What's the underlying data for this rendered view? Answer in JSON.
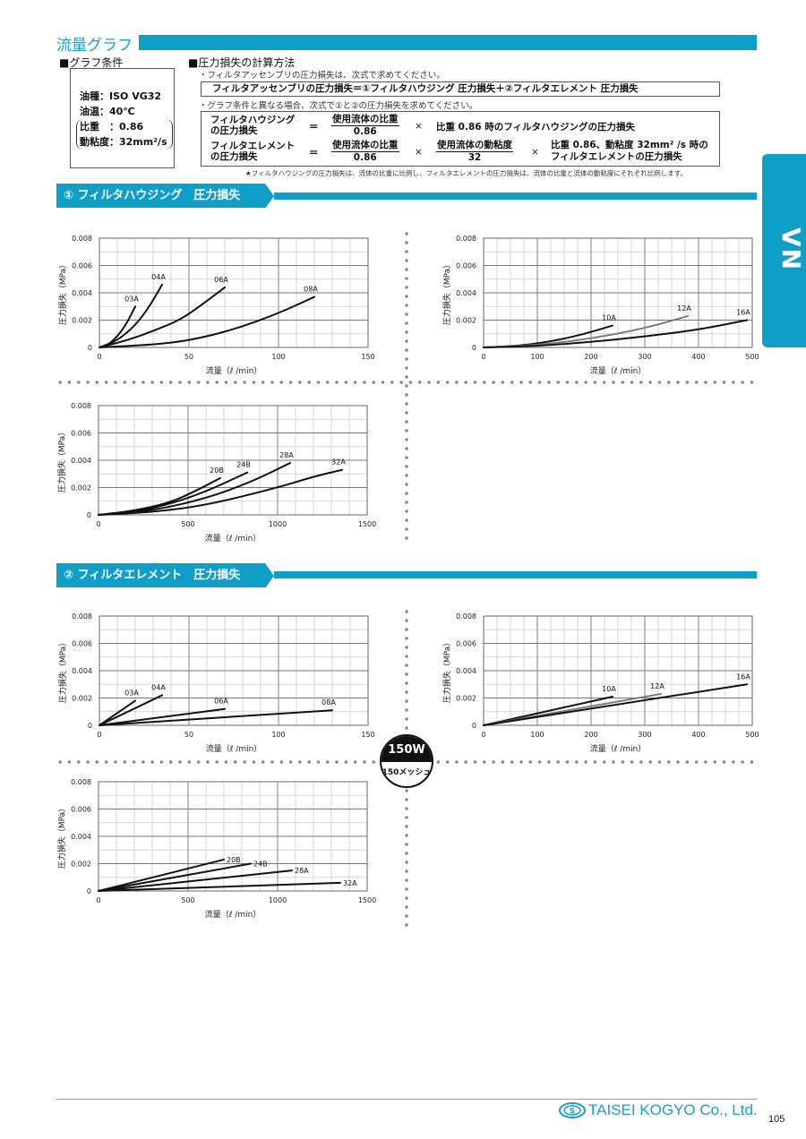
{
  "header": {
    "title": "流量グラフ"
  },
  "conditions": {
    "heading": "■グラフ条件",
    "oil": "油種：ISO VG32",
    "temp": "油温：40℃",
    "gravity": "比重　：0.86",
    "viscosity": "動粘度：32mm²/s"
  },
  "method": {
    "heading": "■圧力損失の計算方法",
    "note1": "・フィルタアッセンブリの圧力損失は、次式で求めてください。",
    "formula_main": "フィルタアッセンブリの圧力損失＝①フィルタハウジング 圧力損失＋②フィルタエレメント 圧力損失",
    "note2": "・グラフ条件と異なる場合、次式で①と②の圧力損失を求めてください。",
    "row1": {
      "lhs1": "フィルタハウジング",
      "lhs2": "の圧力損失",
      "eq": "＝",
      "num": "使用流体の比重",
      "den": "0.86",
      "times": "×",
      "rhs": "比重 0.86 時のフィルタハウジングの圧力損失"
    },
    "row2": {
      "lhs1": "フィルタエレメント",
      "lhs2": "の圧力損失",
      "eq": "＝",
      "num": "使用流体の比重",
      "den": "0.86",
      "times": "×",
      "num2": "使用流体の動粘度",
      "den2": "32",
      "times2": "×",
      "rhs1": "比重 0.86、動粘度 32mm² /s 時の",
      "rhs2": "フィルタエレメントの圧力損失"
    },
    "footnote": "★フィルタハウジングの圧力損失は、流体の比重に比例し、フィルタエレメントの圧力損失は、流体の比重と流体の動粘度にそれぞれ比例します。"
  },
  "sections": [
    {
      "title": "① フィルタハウジング　圧力損失"
    },
    {
      "title": "② フィルタエレメント　圧力損失"
    }
  ],
  "side_tab": "VN",
  "badge": {
    "top": "150W",
    "bottom": "150メッシュ"
  },
  "footer": {
    "company": "TAISEI KOGYO Co., Ltd.",
    "page": "105"
  },
  "colors": {
    "accent": "#0f9ec7",
    "series_gray": "#7a7a7a"
  },
  "chart_data": [
    {
      "type": "line",
      "xlabel": "流量（ℓ /min）",
      "ylabel": "圧力損失（MPa）",
      "xlim": [
        0,
        150
      ],
      "ylim": [
        0,
        0.008
      ],
      "xticks": [
        0,
        50,
        100,
        150
      ],
      "yticks": [
        "0",
        "0.002",
        "0.004",
        "0.006",
        "0.008"
      ],
      "xminor": 10,
      "grid": true,
      "series": [
        {
          "name": "03A",
          "color": "#111",
          "points": [
            [
              0,
              0
            ],
            [
              5,
              0.0002
            ],
            [
              10,
              0.0008
            ],
            [
              15,
              0.0017
            ],
            [
              20,
              0.003
            ]
          ]
        },
        {
          "name": "04A",
          "color": "#111",
          "points": [
            [
              0,
              0
            ],
            [
              10,
              0.0005
            ],
            [
              20,
              0.0016
            ],
            [
              28,
              0.003
            ],
            [
              35,
              0.0046
            ]
          ]
        },
        {
          "name": "06A",
          "color": "#111",
          "points": [
            [
              0,
              0
            ],
            [
              15,
              0.0005
            ],
            [
              30,
              0.0012
            ],
            [
              45,
              0.002
            ],
            [
              58,
              0.0032
            ],
            [
              70,
              0.0044
            ]
          ]
        },
        {
          "name": "08A",
          "color": "#111",
          "points": [
            [
              0,
              0
            ],
            [
              30,
              0.0002
            ],
            [
              50,
              0.0005
            ],
            [
              75,
              0.0013
            ],
            [
              100,
              0.0025
            ],
            [
              120,
              0.0037
            ]
          ]
        }
      ]
    },
    {
      "type": "line",
      "xlabel": "流量（ℓ /min）",
      "ylabel": "圧力損失（MPa）",
      "xlim": [
        0,
        500
      ],
      "ylim": [
        0,
        0.008
      ],
      "xticks": [
        0,
        100,
        200,
        300,
        400,
        500
      ],
      "yticks": [
        "0",
        "0.002",
        "0.004",
        "0.006",
        "0.008"
      ],
      "xminor": 25,
      "grid": true,
      "series": [
        {
          "name": "10A",
          "color": "#111",
          "points": [
            [
              0,
              0
            ],
            [
              60,
              0.0001
            ],
            [
              120,
              0.0004
            ],
            [
              180,
              0.0009
            ],
            [
              240,
              0.0016
            ]
          ]
        },
        {
          "name": "12A",
          "color": "#7a7a7a",
          "points": [
            [
              0,
              0
            ],
            [
              100,
              0.00016
            ],
            [
              200,
              0.00064
            ],
            [
              300,
              0.0014
            ],
            [
              380,
              0.0023
            ]
          ]
        },
        {
          "name": "16A",
          "color": "#111",
          "points": [
            [
              0,
              0
            ],
            [
              100,
              0.0001
            ],
            [
              200,
              0.0004
            ],
            [
              300,
              0.0008
            ],
            [
              400,
              0.0013
            ],
            [
              490,
              0.002
            ]
          ]
        }
      ]
    },
    {
      "type": "line",
      "xlabel": "流量（ℓ /min）",
      "ylabel": "圧力損失（MPa）",
      "xlim": [
        0,
        1500
      ],
      "ylim": [
        0,
        0.008
      ],
      "xticks": [
        0,
        500,
        1000,
        1500
      ],
      "yticks": [
        "0",
        "0.002",
        "0.004",
        "0.006",
        "0.008"
      ],
      "xminor": 100,
      "grid": true,
      "series": [
        {
          "name": "20B",
          "color": "#111",
          "points": [
            [
              0,
              0
            ],
            [
              200,
              0.0003
            ],
            [
              400,
              0.0009
            ],
            [
              550,
              0.0018
            ],
            [
              680,
              0.0027
            ]
          ]
        },
        {
          "name": "24B",
          "color": "#111",
          "points": [
            [
              0,
              0
            ],
            [
              200,
              0.0002
            ],
            [
              400,
              0.0008
            ],
            [
              600,
              0.0017
            ],
            [
              830,
              0.0031
            ]
          ]
        },
        {
          "name": "28A",
          "color": "#111",
          "points": [
            [
              0,
              0
            ],
            [
              300,
              0.0003
            ],
            [
              600,
              0.0012
            ],
            [
              850,
              0.0024
            ],
            [
              1070,
              0.0038
            ]
          ]
        },
        {
          "name": "32A",
          "color": "#111",
          "points": [
            [
              0,
              0
            ],
            [
              300,
              0.0002
            ],
            [
              600,
              0.0007
            ],
            [
              1000,
              0.002
            ],
            [
              1200,
              0.0028
            ],
            [
              1360,
              0.0033
            ]
          ]
        }
      ]
    },
    {
      "type": "line",
      "xlabel": "流量（ℓ /min）",
      "ylabel": "圧力損失（MPa）",
      "xlim": [
        0,
        150
      ],
      "ylim": [
        0,
        0.008
      ],
      "xticks": [
        0,
        50,
        100,
        150
      ],
      "yticks": [
        "0",
        "0.002",
        "0.004",
        "0.006",
        "0.008"
      ],
      "xminor": 10,
      "grid": true,
      "series": [
        {
          "name": "03A",
          "color": "#111",
          "points": [
            [
              0,
              0
            ],
            [
              20,
              0.0018
            ]
          ]
        },
        {
          "name": "04A",
          "color": "#111",
          "points": [
            [
              0,
              0
            ],
            [
              35,
              0.0022
            ]
          ]
        },
        {
          "name": "06A",
          "color": "#111",
          "points": [
            [
              0,
              0
            ],
            [
              70,
              0.0012
            ]
          ]
        },
        {
          "name": "08A",
          "color": "#111",
          "points": [
            [
              0,
              0
            ],
            [
              130,
              0.0011
            ]
          ]
        }
      ]
    },
    {
      "type": "line",
      "xlabel": "流量（ℓ /min）",
      "ylabel": "圧力損失（MPa）",
      "xlim": [
        0,
        500
      ],
      "ylim": [
        0,
        0.008
      ],
      "xticks": [
        0,
        100,
        200,
        300,
        400,
        500
      ],
      "yticks": [
        "0",
        "0.002",
        "0.004",
        "0.006",
        "0.008"
      ],
      "xminor": 25,
      "grid": true,
      "series": [
        {
          "name": "10A",
          "color": "#111",
          "points": [
            [
              0,
              0
            ],
            [
              240,
              0.0021
            ]
          ]
        },
        {
          "name": "12A",
          "color": "#7a7a7a",
          "points": [
            [
              0,
              0
            ],
            [
              330,
              0.0023
            ]
          ]
        },
        {
          "name": "16A",
          "color": "#111",
          "points": [
            [
              0,
              0
            ],
            [
              490,
              0.003
            ]
          ]
        }
      ]
    },
    {
      "type": "line",
      "xlabel": "流量（ℓ /min）",
      "ylabel": "圧力損失（MPa）",
      "xlim": [
        0,
        1500
      ],
      "ylim": [
        0,
        0.008
      ],
      "xticks": [
        0,
        500,
        1000,
        1500
      ],
      "yticks": [
        "0",
        "0.002",
        "0.004",
        "0.006",
        "0.008"
      ],
      "xminor": 100,
      "grid": true,
      "series": [
        {
          "name": "20B",
          "color": "#111",
          "points": [
            [
              0,
              0
            ],
            [
              700,
              0.0023
            ]
          ]
        },
        {
          "name": "24B",
          "color": "#111",
          "points": [
            [
              0,
              0
            ],
            [
              850,
              0.002
            ]
          ]
        },
        {
          "name": "28A",
          "color": "#111",
          "points": [
            [
              0,
              0
            ],
            [
              1080,
              0.0015
            ]
          ]
        },
        {
          "name": "32A",
          "color": "#111",
          "points": [
            [
              0,
              0
            ],
            [
              1350,
              0.0006
            ]
          ]
        }
      ]
    }
  ]
}
